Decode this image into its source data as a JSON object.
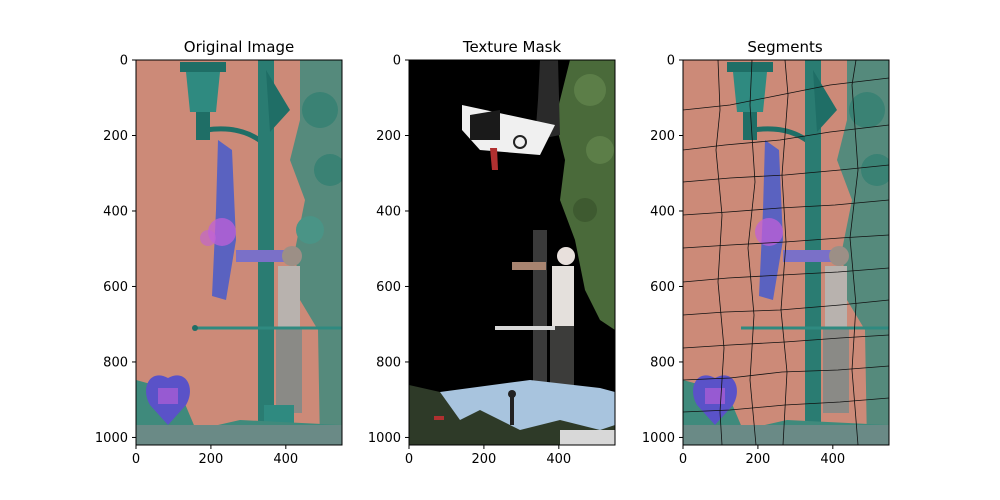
{
  "chart_data": [
    {
      "type": "image",
      "title": "Original Image",
      "xlim": [
        0,
        550
      ],
      "ylim": [
        1020,
        0
      ],
      "x_ticks": [
        0,
        200,
        400
      ],
      "y_ticks": [
        0,
        200,
        400,
        600,
        800,
        1000
      ],
      "content": "tinted photo: lamppost, flag, person holding pole, heart balloon"
    },
    {
      "type": "image",
      "title": "Texture Mask",
      "xlim": [
        0,
        550
      ],
      "ylim": [
        1020,
        0
      ],
      "x_ticks": [
        0,
        200,
        400
      ],
      "y_ticks": [
        0,
        200,
        400,
        600,
        800,
        1000
      ],
      "content": "mask on black background showing trees, lamp, person and sky"
    },
    {
      "type": "image",
      "title": "Segments",
      "xlim": [
        0,
        550
      ],
      "ylim": [
        1020,
        0
      ],
      "x_ticks": [
        0,
        200,
        400
      ],
      "y_ticks": [
        0,
        200,
        400,
        600,
        800,
        1000
      ],
      "content": "tinted photo with black superpixel segment boundaries"
    }
  ],
  "colors": {
    "salmon": "#cc8a78",
    "teal": "#2f8a80",
    "dark_teal": "#1f6e66",
    "purple": "#5a52c8",
    "magenta": "#c060d8",
    "black": "#000000",
    "sky": "#a8c4de",
    "foliage": "#4a6a3a"
  }
}
